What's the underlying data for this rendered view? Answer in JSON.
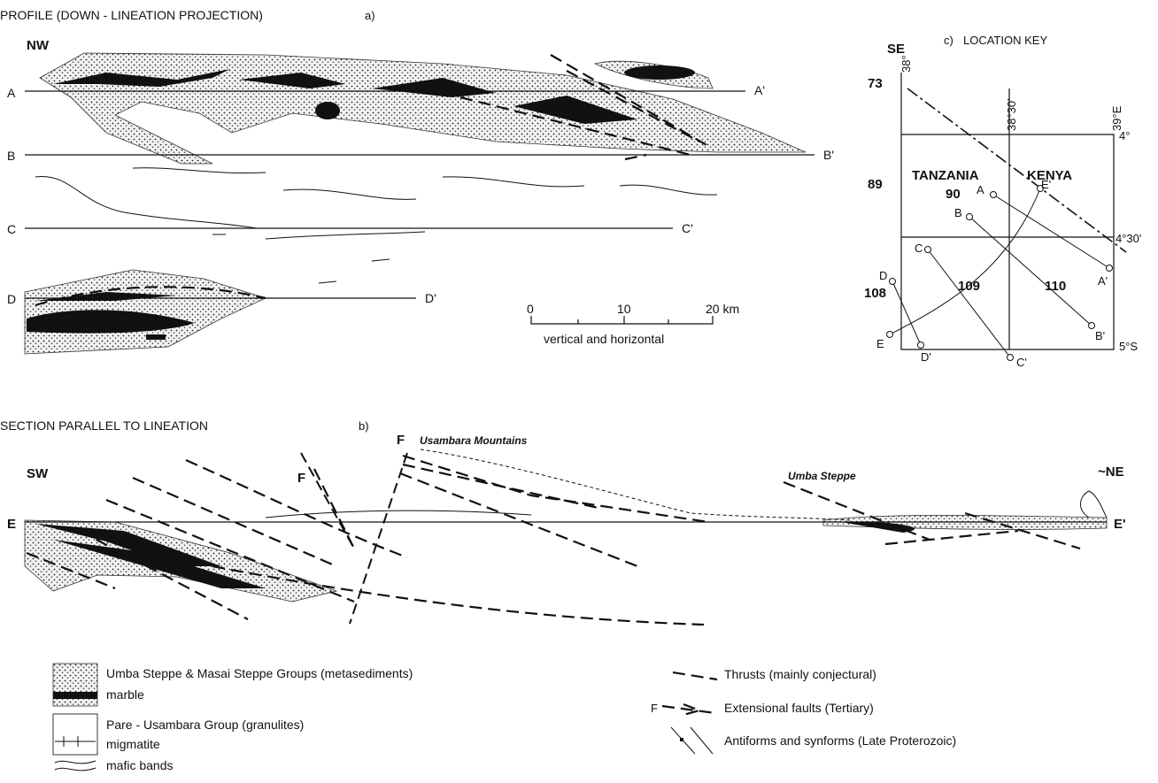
{
  "profile": {
    "title": "PROFILE (DOWN - LINEATION PROJECTION)",
    "panel": "a)",
    "left": "NW",
    "right": "SE",
    "lines": [
      {
        "start": "A",
        "end": "A'"
      },
      {
        "start": "B",
        "end": "B'"
      },
      {
        "start": "C",
        "end": "C'"
      },
      {
        "start": "D",
        "end": "D'"
      }
    ]
  },
  "scale": {
    "ticks": [
      "0",
      "10",
      "20 km"
    ],
    "caption": "vertical and horizontal"
  },
  "location_key": {
    "panel": "c)",
    "title": "LOCATION KEY",
    "longitudes": [
      "38°",
      "38°30'",
      "39°E"
    ],
    "latitudes": [
      "4°",
      "4°30'",
      "5°S"
    ],
    "sheets": [
      "73",
      "89",
      "90",
      "108",
      "109",
      "110"
    ],
    "countries": [
      "TANZANIA",
      "KENYA"
    ],
    "lines": [
      {
        "start": "A",
        "end": "A'"
      },
      {
        "start": "B",
        "end": "B'"
      },
      {
        "start": "C",
        "end": "C'"
      },
      {
        "start": "D",
        "end": "D'"
      },
      {
        "start": "E",
        "end": "E'"
      }
    ]
  },
  "section": {
    "title": "SECTION PARALLEL TO LINEATION",
    "panel": "b)",
    "left": "SW",
    "right": "~NE",
    "fault_labels": [
      "F",
      "F"
    ],
    "mountains": "Usambara Mountains",
    "steppe": "Umba Steppe",
    "line": {
      "start": "E",
      "end": "E'"
    }
  },
  "legend": {
    "metasediments": "Umba Steppe & Masai Steppe Groups (metasediments)",
    "marble": "marble",
    "granulites": "Pare - Usambara Group (granulites)",
    "migmatite": "migmatite",
    "mafic": "mafic bands",
    "thrusts": "Thrusts (mainly conjectural)",
    "fault_symbol": "F",
    "faults": "Extensional faults (Tertiary)",
    "folds": "Antiforms and synforms (Late Proterozoic)"
  }
}
